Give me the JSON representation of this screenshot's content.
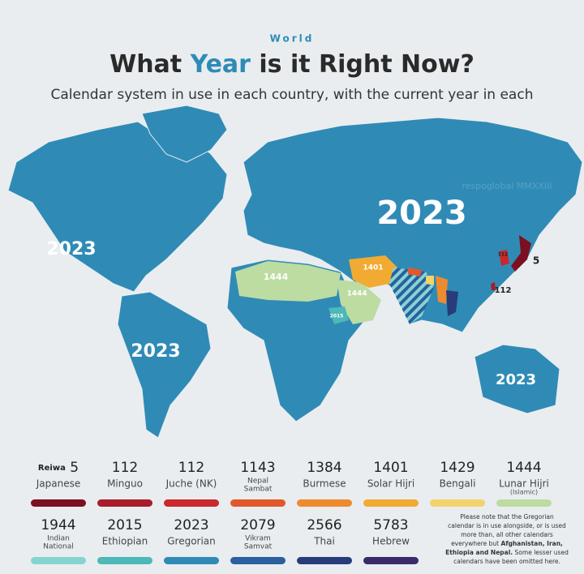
{
  "header": {
    "kicker": "World",
    "title_parts": [
      "What ",
      "Year",
      " is it Right Now?"
    ],
    "subtitle": "Calendar system in use in each country, with the current year in each"
  },
  "map": {
    "watermark": "respoglobal MMXXIII",
    "labels": [
      "2023",
      "2023",
      "2023",
      "2023",
      "1444",
      "1401",
      "1444",
      "2015",
      "112",
      "5",
      "112"
    ]
  },
  "legend": [
    {
      "prefix": "Reiwa",
      "year": 5,
      "lines": [
        "Japanese"
      ],
      "color": "#7a1020"
    },
    {
      "year": 112,
      "lines": [
        "Minguo"
      ],
      "color": "#a81d2b"
    },
    {
      "year": 112,
      "lines": [
        "Juche (NK)"
      ],
      "color": "#c9282c"
    },
    {
      "year": 1143,
      "lines": [
        "Nepal",
        "Sambat"
      ],
      "color": "#e0592b"
    },
    {
      "year": 1384,
      "lines": [
        "Burmese"
      ],
      "color": "#ee8b2f"
    },
    {
      "year": 1401,
      "lines": [
        "Solar Hijri"
      ],
      "color": "#f1ab32"
    },
    {
      "year": 1429,
      "lines": [
        "Bengali"
      ],
      "color": "#f2d36c"
    },
    {
      "year": 1444,
      "lines": [
        "Lunar Hijri"
      ],
      "sub": "(Islamic)",
      "color": "#bcdca2"
    },
    {
      "year": 1944,
      "lines": [
        "Indian",
        "National"
      ],
      "color": "#85d4d2"
    },
    {
      "year": 2015,
      "lines": [
        "Ethiopian"
      ],
      "color": "#4cb8b7"
    },
    {
      "year": 2023,
      "lines": [
        "Gregorian"
      ],
      "color": "#2f8bb6"
    },
    {
      "year": 2079,
      "lines": [
        "Vikram",
        "Samvat"
      ],
      "color": "#2b5f9f"
    },
    {
      "year": 2566,
      "lines": [
        "Thai"
      ],
      "color": "#283b7b"
    },
    {
      "year": 5783,
      "lines": [
        "Hebrew"
      ],
      "color": "#3b2a6b"
    }
  ],
  "note": {
    "lines": [
      [
        {
          "text": "Please note that the Gregorian"
        }
      ],
      [
        {
          "text": "calendar is in use alongside, or is used"
        }
      ],
      [
        {
          "text": "more than, all other calendars"
        }
      ],
      [
        {
          "text": "everywhere but "
        },
        {
          "text": "Afghanistan, Iran,",
          "bold": true
        }
      ],
      [
        {
          "text": "Ethiopia and Nepal.",
          "bold": true
        },
        {
          "text": " Some lesser used"
        }
      ],
      [
        {
          "text": "calendars have been omitted here."
        }
      ]
    ]
  }
}
